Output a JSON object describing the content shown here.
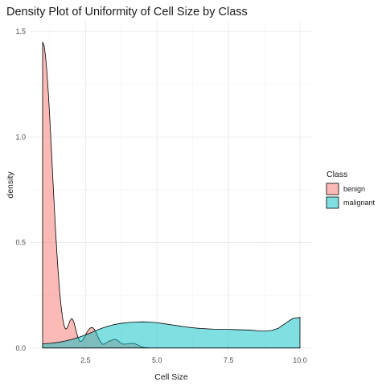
{
  "chart_data": {
    "type": "area",
    "title": "Density Plot of Uniformity of Cell Size by Class",
    "xlabel": "Cell Size",
    "ylabel": "density",
    "xlim": [
      0.55,
      10.45
    ],
    "ylim": [
      -0.02,
      1.55
    ],
    "x_ticks": [
      2.5,
      5.0,
      7.5,
      10.0
    ],
    "x_tick_labels": [
      "2.5",
      "5.0",
      "7.5",
      "10.0"
    ],
    "y_ticks": [
      0.0,
      0.5,
      1.0,
      1.5
    ],
    "y_tick_labels": [
      "0.0",
      "0.5",
      "1.0",
      "1.5"
    ],
    "grid": true,
    "legend": {
      "title": "Class",
      "position": "right",
      "entries": [
        "benign",
        "malignant"
      ]
    },
    "colors": {
      "benign": "#F8766D",
      "malignant": "#00BFC4"
    },
    "fill_opacity": 0.5,
    "series": [
      {
        "name": "benign",
        "x": [
          1.0,
          1.05,
          1.1,
          1.15,
          1.2,
          1.25,
          1.3,
          1.35,
          1.4,
          1.45,
          1.5,
          1.55,
          1.6,
          1.65,
          1.7,
          1.75,
          1.8,
          1.85,
          1.9,
          1.95,
          2.0,
          2.05,
          2.1,
          2.15,
          2.2,
          2.25,
          2.3,
          2.35,
          2.4,
          2.45,
          2.5,
          2.55,
          2.6,
          2.65,
          2.7,
          2.75,
          2.8,
          2.85,
          2.9,
          2.95,
          3.0,
          3.05,
          3.1,
          3.15,
          3.2,
          3.25,
          3.3,
          3.35,
          3.4,
          3.45,
          3.5,
          3.55,
          3.6,
          3.65,
          3.7,
          3.75,
          3.8,
          3.85,
          3.9,
          3.95,
          4.0,
          4.05,
          4.1,
          4.15,
          4.2,
          4.25,
          4.3,
          4.35,
          4.4,
          4.45,
          4.5,
          4.6,
          4.7,
          4.8,
          4.9,
          5.0,
          5.5,
          6.0,
          6.5,
          7.0,
          7.5,
          8.0,
          8.5,
          9.0,
          9.5,
          10.0
        ],
        "values": [
          1.45,
          1.434,
          1.386,
          1.31,
          1.209,
          1.09,
          0.96,
          0.824,
          0.691,
          0.564,
          0.449,
          0.347,
          0.262,
          0.193,
          0.141,
          0.106,
          0.09,
          0.093,
          0.108,
          0.127,
          0.139,
          0.136,
          0.119,
          0.093,
          0.066,
          0.045,
          0.033,
          0.031,
          0.037,
          0.05,
          0.062,
          0.075,
          0.085,
          0.093,
          0.097,
          0.096,
          0.09,
          0.079,
          0.064,
          0.049,
          0.035,
          0.024,
          0.018,
          0.018,
          0.022,
          0.027,
          0.031,
          0.034,
          0.036,
          0.038,
          0.04,
          0.041,
          0.038,
          0.033,
          0.027,
          0.022,
          0.019,
          0.018,
          0.019,
          0.019,
          0.02,
          0.021,
          0.022,
          0.022,
          0.021,
          0.019,
          0.016,
          0.013,
          0.009,
          0.006,
          0.004,
          0.002,
          0.001,
          0.0,
          0.0,
          0.0,
          0.0,
          0.0,
          0.0,
          0.0,
          0.0,
          0.0,
          0.0,
          0.0,
          0.0,
          0.0
        ]
      },
      {
        "name": "malignant",
        "x": [
          1.0,
          1.25,
          1.5,
          1.75,
          2.0,
          2.25,
          2.5,
          2.75,
          3.0,
          3.25,
          3.5,
          3.75,
          4.0,
          4.25,
          4.5,
          4.75,
          5.0,
          5.25,
          5.5,
          5.75,
          6.0,
          6.25,
          6.5,
          6.75,
          7.0,
          7.25,
          7.5,
          7.75,
          8.0,
          8.25,
          8.5,
          8.75,
          9.0,
          9.25,
          9.5,
          9.75,
          10.0
        ],
        "values": [
          0.02,
          0.022,
          0.026,
          0.032,
          0.04,
          0.05,
          0.062,
          0.076,
          0.09,
          0.102,
          0.111,
          0.117,
          0.121,
          0.123,
          0.124,
          0.123,
          0.12,
          0.115,
          0.11,
          0.105,
          0.1,
          0.096,
          0.093,
          0.091,
          0.089,
          0.088,
          0.088,
          0.087,
          0.086,
          0.085,
          0.082,
          0.08,
          0.083,
          0.094,
          0.118,
          0.14,
          0.145
        ]
      }
    ]
  }
}
